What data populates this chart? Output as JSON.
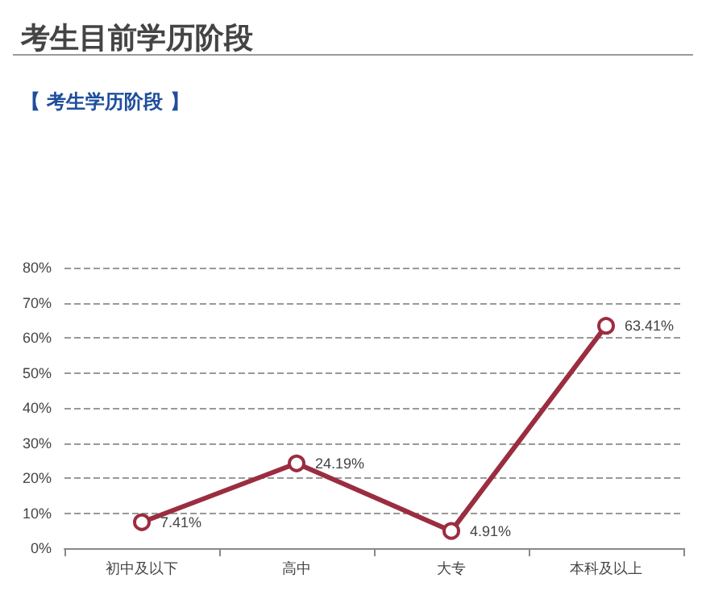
{
  "chart_data": {
    "type": "line",
    "title": "考生目前学历阶段",
    "subtitle": "【 考生学历阶段 】",
    "categories": [
      "初中及以下",
      "高中",
      "大专",
      "本科及以上"
    ],
    "series": [
      {
        "color": "#9b2d40",
        "values": [
          7.41,
          24.19,
          4.91,
          63.41
        ],
        "value_labels": [
          "7.41%",
          "24.19%",
          "4.91%",
          "63.41%"
        ]
      }
    ],
    "ylim": [
      0,
      80
    ],
    "yticks": [
      {
        "value": 0,
        "label": "0%"
      },
      {
        "value": 10,
        "label": "10%"
      },
      {
        "value": 20,
        "label": "20%"
      },
      {
        "value": 30,
        "label": "30%"
      },
      {
        "value": 40,
        "label": "40%"
      },
      {
        "value": 50,
        "label": "50%"
      },
      {
        "value": 60,
        "label": "60%"
      },
      {
        "value": 70,
        "label": "70%"
      },
      {
        "value": 80,
        "label": "80%"
      }
    ],
    "grid": "y",
    "marker": "circle",
    "line_style": "solid"
  }
}
